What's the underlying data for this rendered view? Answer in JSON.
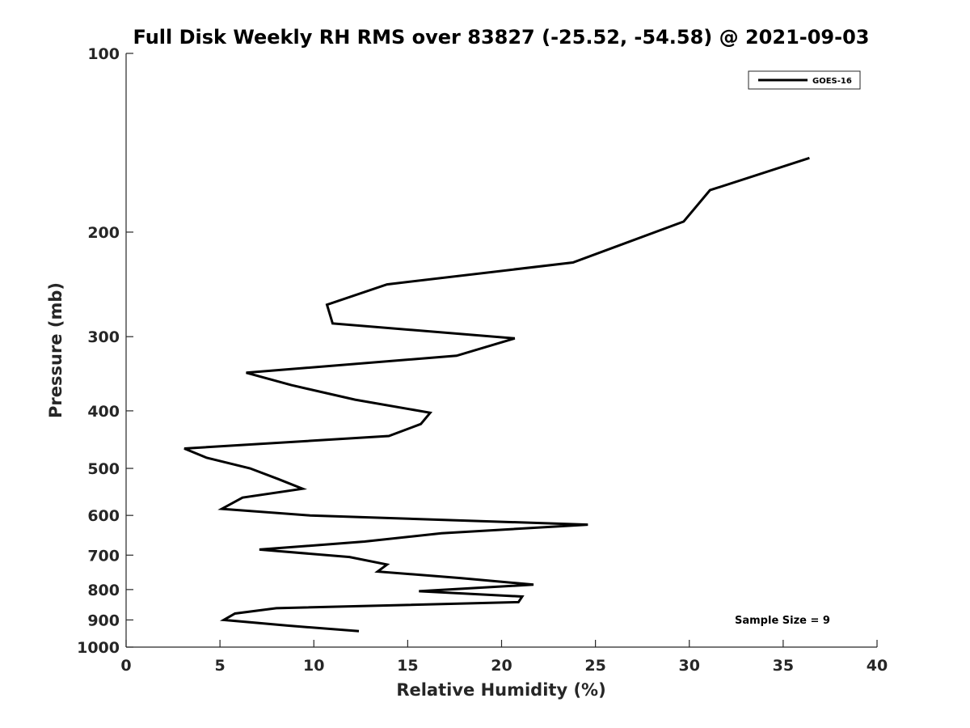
{
  "chart_data": {
    "type": "line",
    "title": "Full Disk Weekly RH RMS over 83827 (-25.52, -54.58) @ 2021-09-03",
    "xlabel": "Relative Humidity (%)",
    "ylabel": "Pressure (mb)",
    "xlim": [
      0,
      40
    ],
    "ylim": [
      100,
      1000
    ],
    "yscale": "log",
    "y_reversed": true,
    "xticks": [
      "0",
      "5",
      "10",
      "15",
      "20",
      "25",
      "30",
      "35",
      "40"
    ],
    "yticks": [
      "100",
      "200",
      "300",
      "400",
      "500",
      "600",
      "700",
      "800",
      "900",
      "1000"
    ],
    "grid": false,
    "legend": {
      "placement": "top-right",
      "entries": [
        "GOES-16"
      ]
    },
    "annotation": "Sample Size = 9",
    "series": [
      {
        "name": "GOES-16",
        "color": "#000000",
        "points": [
          [
            36.4,
            150
          ],
          [
            31.1,
            170
          ],
          [
            29.7,
            192
          ],
          [
            23.8,
            225
          ],
          [
            13.9,
            245
          ],
          [
            10.7,
            265
          ],
          [
            11.0,
            285
          ],
          [
            20.7,
            302
          ],
          [
            17.6,
            323
          ],
          [
            6.4,
            345
          ],
          [
            8.8,
            362
          ],
          [
            12.2,
            383
          ],
          [
            16.2,
            403
          ],
          [
            15.7,
            421
          ],
          [
            14.0,
            441
          ],
          [
            3.1,
            463
          ],
          [
            4.3,
            480
          ],
          [
            6.6,
            500
          ],
          [
            8.1,
            521
          ],
          [
            9.4,
            541
          ],
          [
            6.2,
            560
          ],
          [
            5.1,
            585
          ],
          [
            9.8,
            600
          ],
          [
            24.6,
            622
          ],
          [
            16.8,
            643
          ],
          [
            12.7,
            664
          ],
          [
            7.1,
            685
          ],
          [
            11.9,
            705
          ],
          [
            13.9,
            726
          ],
          [
            13.4,
            746
          ],
          [
            17.8,
            765
          ],
          [
            21.7,
            785
          ],
          [
            15.6,
            805
          ],
          [
            21.1,
            822
          ],
          [
            20.9,
            840
          ],
          [
            8.0,
            860
          ],
          [
            5.8,
            878
          ],
          [
            5.2,
            900
          ],
          [
            8.6,
            920
          ],
          [
            12.4,
            940
          ]
        ]
      }
    ]
  }
}
